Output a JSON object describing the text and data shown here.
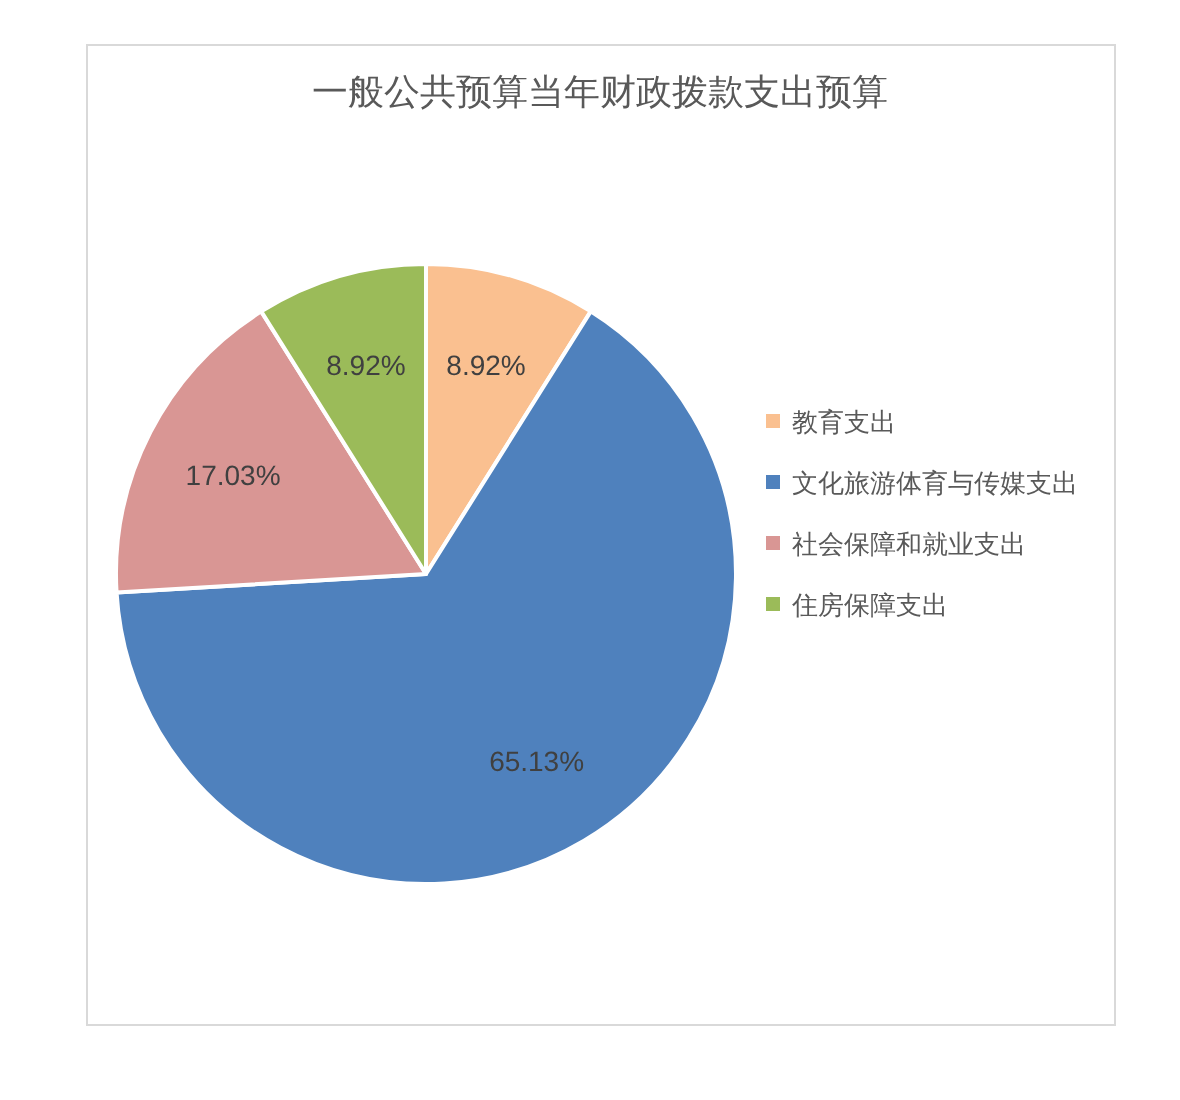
{
  "chart_data": {
    "type": "pie",
    "title": "一般公共预算当年财政拨款支出预算",
    "categories": [
      "教育支出",
      "文化旅游体育与传媒支出",
      "社会保障和就业支出",
      "住房保障支出"
    ],
    "values": [
      8.92,
      65.13,
      17.03,
      8.92
    ],
    "colors": [
      "#fac090",
      "#4f81bd",
      "#d99694",
      "#9bbb59"
    ],
    "value_labels": [
      "8.92%",
      "65.13%",
      "17.03%",
      "8.92%"
    ],
    "legend": "right"
  }
}
